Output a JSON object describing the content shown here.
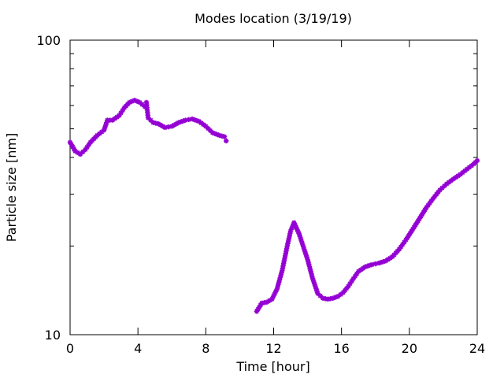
{
  "chart_data": {
    "type": "scatter",
    "title": "Modes location (3/19/19)",
    "xlabel": "Time [hour]",
    "ylabel": "Particle size [nm]",
    "xlim": [
      0,
      24
    ],
    "ylim": [
      10,
      100
    ],
    "yscale": "log",
    "grid": false,
    "marker_color": "#9400d3",
    "x_ticks": [
      0,
      4,
      8,
      12,
      16,
      20,
      24
    ],
    "x_tick_labels": [
      "0",
      "4",
      "8",
      "12",
      "16",
      "20",
      "24"
    ],
    "y_tick_labels": [
      {
        "value": 10,
        "label": "10"
      },
      {
        "value": 100,
        "label": "100"
      }
    ],
    "segments": [
      {
        "x": [
          0,
          0.3,
          0.6,
          0.9,
          1.2,
          1.6,
          2.0,
          2.2,
          2.5,
          2.9,
          3.2,
          3.5,
          3.8,
          4.1,
          4.4,
          4.5,
          4.6,
          4.9,
          5.2,
          5.6,
          6.0,
          6.4,
          6.8,
          7.2,
          7.6,
          8.0,
          8.4,
          8.8,
          9.1,
          9.2
        ],
        "y": [
          45,
          42,
          41,
          42.5,
          45,
          47.5,
          49.5,
          53.5,
          53.5,
          55.5,
          59,
          61.5,
          62.5,
          61.5,
          59.5,
          61.5,
          54.5,
          52.5,
          52,
          50.5,
          51,
          52.5,
          53.5,
          54,
          53,
          51,
          48.5,
          47.5,
          47,
          45.5
        ]
      },
      {
        "x": [
          11.0,
          11.3,
          11.6,
          11.9,
          12.2,
          12.5,
          12.8,
          13.0,
          13.2,
          13.5,
          13.8,
          14.0,
          14.3,
          14.6,
          14.9,
          15.2,
          15.5,
          15.8,
          16.1,
          16.4,
          16.7,
          17.0,
          17.4,
          17.8,
          18.2,
          18.6,
          19.0,
          19.4,
          19.8,
          20.2,
          20.6,
          21.0,
          21.4,
          21.8,
          22.2,
          22.6,
          23.0,
          23.4,
          23.8,
          24.0
        ],
        "y": [
          12,
          12.8,
          12.9,
          13.2,
          14.3,
          16.5,
          20.0,
          22.5,
          24.0,
          22.0,
          19.5,
          18.0,
          15.5,
          13.8,
          13.3,
          13.2,
          13.3,
          13.5,
          13.9,
          14.6,
          15.5,
          16.4,
          17.0,
          17.3,
          17.5,
          17.8,
          18.4,
          19.5,
          21.0,
          22.8,
          24.8,
          27.0,
          29.0,
          31.0,
          32.5,
          33.8,
          35.0,
          36.5,
          38.0,
          39.0
        ]
      }
    ]
  }
}
